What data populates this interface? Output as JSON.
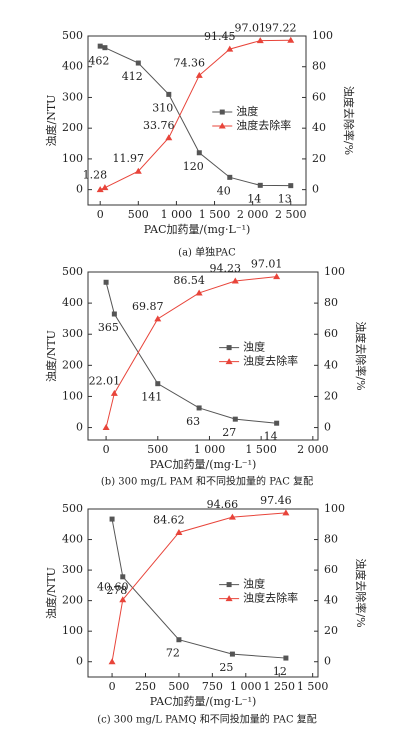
{
  "chart_data": [
    {
      "type": "line",
      "x_label": "PAC加药量/(mg·L⁻¹)",
      "y_label": "浊度/NTU",
      "y2_label": "浊度去除率/%",
      "caption": "(a) 单独PAC",
      "xlim": [
        -160,
        2700
      ],
      "xticks": [
        0,
        500,
        {
          "value": 1000,
          "label": "1 000"
        },
        {
          "value": 1500,
          "label": "1 500"
        },
        {
          "value": 2000,
          "label": "2 000"
        },
        {
          "value": 2500,
          "label": "2 500"
        }
      ],
      "ylim": [
        -50,
        500
      ],
      "yticks": [
        0,
        100,
        200,
        300,
        400,
        500
      ],
      "y2lim": [
        -10,
        100
      ],
      "y2ticks": [
        0,
        20,
        40,
        60,
        80,
        100
      ],
      "legend": "center",
      "series": [
        {
          "name": "浊度",
          "color": "#555555",
          "marker": "square",
          "x": [
            0,
            62,
            500,
            900,
            1300,
            1700,
            2100,
            2500
          ],
          "values": [
            467,
            462,
            412,
            310,
            120,
            40,
            14,
            13
          ],
          "value_labels": [
            null,
            "462",
            "412",
            "310",
            "120",
            "40",
            "14",
            "13"
          ]
        },
        {
          "name": "浊度去除率",
          "color": "#e8443a",
          "marker": "triangle",
          "axis": "y2",
          "x": [
            0,
            62,
            500,
            900,
            1300,
            1700,
            2100,
            2500
          ],
          "values": [
            0,
            1.28,
            11.97,
            33.76,
            74.36,
            91.45,
            97.01,
            97.22
          ],
          "value_labels": [
            null,
            "1.28",
            "11.97",
            "33.76",
            "74.36",
            "91.45",
            "97.01",
            "97.22"
          ]
        }
      ]
    },
    {
      "type": "line",
      "x_label": "PAC加药量/(mg·L⁻¹)",
      "y_label": "浊度/NTU",
      "y2_label": "浊度去除率/%",
      "caption": "(b) 300 mg/L PAM 和不同投加量的 PAC 复配",
      "xlim": [
        -175,
        2050
      ],
      "xticks": [
        0,
        500,
        {
          "value": 1000,
          "label": "1 000"
        },
        {
          "value": 1500,
          "label": "1 500"
        },
        {
          "value": 2000,
          "label": "2 000"
        }
      ],
      "ylim": [
        -40,
        500
      ],
      "yticks": [
        0,
        100,
        200,
        300,
        400,
        500
      ],
      "y2lim": [
        -8,
        100
      ],
      "y2ticks": [
        0,
        20,
        40,
        60,
        80,
        100
      ],
      "legend": "center",
      "series": [
        {
          "name": "浊度",
          "color": "#555555",
          "marker": "square",
          "x": [
            0,
            80,
            500,
            900,
            1250,
            1650
          ],
          "values": [
            467,
            365,
            141,
            63,
            27,
            14
          ],
          "value_labels": [
            null,
            "365",
            "141",
            "63",
            "27",
            "14"
          ]
        },
        {
          "name": "浊度去除率",
          "color": "#e8443a",
          "marker": "triangle",
          "axis": "y2",
          "x": [
            0,
            80,
            500,
            900,
            1250,
            1650
          ],
          "values": [
            0,
            22.01,
            69.87,
            86.54,
            94.23,
            97.01
          ],
          "value_labels": [
            null,
            "22.01",
            "69.87",
            "86.54",
            "94.23",
            "97.01"
          ]
        }
      ]
    },
    {
      "type": "line",
      "x_label": "PAC加药量/(mg·L⁻¹)",
      "y_label": "浊度/NTU",
      "y2_label": "浊度去除率/%",
      "caption": "(c) 300 mg/L PAMQ 和不同投加量的 PAC 复配",
      "xlim": [
        -180,
        1540
      ],
      "xticks": [
        0,
        250,
        500,
        750,
        {
          "value": 1000,
          "label": "1 000"
        },
        {
          "value": 1250,
          "label": "1 250"
        },
        {
          "value": 1500,
          "label": "1 500"
        }
      ],
      "ylim": [
        -50,
        500
      ],
      "yticks": [
        0,
        100,
        200,
        300,
        400,
        500
      ],
      "y2lim": [
        -10,
        100
      ],
      "y2ticks": [
        0,
        20,
        40,
        60,
        80,
        100
      ],
      "legend": "center",
      "series": [
        {
          "name": "浊度",
          "color": "#555555",
          "marker": "square",
          "x": [
            0,
            80,
            500,
            900,
            1300
          ],
          "values": [
            467,
            278,
            72,
            25,
            12
          ],
          "value_labels": [
            null,
            "278",
            "72",
            "25",
            "12"
          ]
        },
        {
          "name": "浊度去除率",
          "color": "#e8443a",
          "marker": "triangle",
          "axis": "y2",
          "x": [
            0,
            80,
            500,
            900,
            1300
          ],
          "values": [
            0,
            40.6,
            84.62,
            94.66,
            97.46
          ],
          "value_labels": [
            null,
            "40.60",
            "84.62",
            "94.66",
            "97.46"
          ]
        }
      ]
    }
  ]
}
